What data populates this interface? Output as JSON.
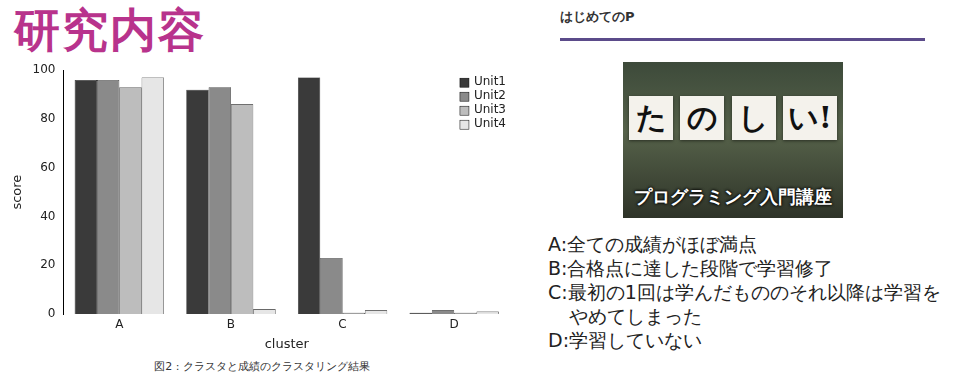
{
  "title": "研究内容",
  "chart_data": {
    "type": "bar",
    "categories": [
      "A",
      "B",
      "C",
      "D"
    ],
    "x_label": "cluster",
    "y_label": "score",
    "series": [
      {
        "name": "Unit1",
        "color": "#3a3a3a",
        "values": [
          96,
          92,
          97,
          0.5
        ]
      },
      {
        "name": "Unit2",
        "color": "#8a8a8a",
        "values": [
          96,
          93,
          23,
          1.5
        ]
      },
      {
        "name": "Unit3",
        "color": "#bdbdbd",
        "values": [
          93,
          86,
          0.5,
          0.5
        ]
      },
      {
        "name": "Unit4",
        "color": "#e6e6e6",
        "values": [
          97,
          2,
          1.5,
          1
        ]
      }
    ],
    "ylim": [
      0,
      100
    ],
    "yticks": [
      0,
      20,
      40,
      60,
      80,
      100
    ],
    "grid": false,
    "legend": "top right"
  },
  "caption": "図2 : クラスタと成績のクラスタリング結果",
  "course": {
    "header": "はじめてのP",
    "sign_letters": [
      "た",
      "の",
      "し",
      "い!"
    ],
    "banner": "プログラミング入門講座"
  },
  "cluster_notes": [
    "A:全ての成績がほぼ満点",
    "B:合格点に達した段階で学習修了",
    "C:最初の1回は学んだもののそれ以降は学習をやめてしまった",
    "D:学習していない"
  ]
}
